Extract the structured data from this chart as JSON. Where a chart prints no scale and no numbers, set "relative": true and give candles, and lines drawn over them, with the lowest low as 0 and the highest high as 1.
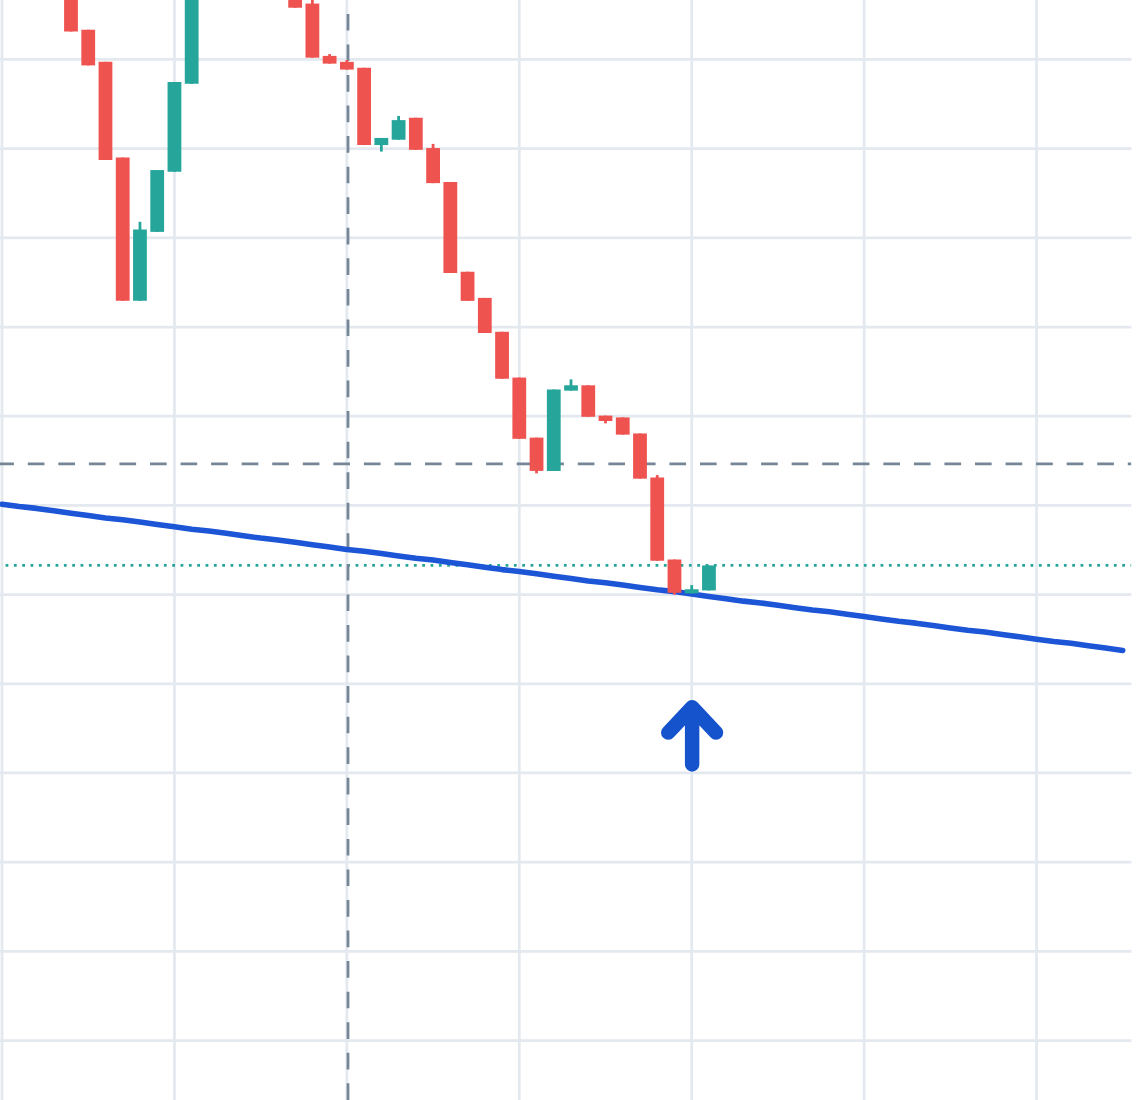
{
  "chart_data": {
    "type": "candlestick",
    "relative": true,
    "categories": [
      null,
      null,
      null,
      null,
      null,
      null,
      null,
      null,
      null,
      null,
      null,
      null,
      null,
      null,
      null,
      null,
      null,
      null,
      null,
      null,
      null,
      null,
      null,
      null,
      null,
      null,
      null,
      null,
      null,
      null,
      null,
      null,
      null,
      null,
      null,
      null,
      null,
      null,
      null,
      null,
      null,
      null,
      null,
      null,
      null,
      null,
      null,
      null,
      null,
      null,
      null,
      null,
      null,
      null,
      null,
      null,
      null,
      null,
      null,
      null,
      null,
      null,
      null,
      null,
      null,
      null
    ],
    "ohlc": [
      null,
      null,
      null,
      null,
      [
        1,
        1,
        0.947,
        0.947
      ],
      [
        0.95,
        0.95,
        0.89,
        0.89
      ],
      [
        0.896,
        0.896,
        0.731,
        0.731
      ],
      [
        0.735,
        0.735,
        0.494,
        0.494
      ],
      [
        0.494,
        0.627,
        0.494,
        0.614
      ],
      [
        0.61,
        0.714,
        0.61,
        0.714
      ],
      [
        0.711,
        0.862,
        0.711,
        0.862
      ],
      [
        0.859,
        1,
        0.859,
        1
      ],
      null,
      null,
      null,
      null,
      null,
      [
        1,
        1,
        0.987,
        0.987
      ],
      [
        0.994,
        1,
        0.903,
        0.903
      ],
      [
        0.906,
        0.909,
        0.893,
        0.893
      ],
      [
        0.896,
        0.899,
        0.883,
        0.883
      ],
      [
        0.886,
        0.886,
        0.756,
        0.756
      ],
      [
        0.756,
        0.768,
        0.745,
        0.768
      ],
      [
        0.765,
        0.805,
        0.765,
        0.798
      ],
      [
        0.802,
        0.802,
        0.748,
        0.748
      ],
      [
        0.751,
        0.758,
        0.692,
        0.692
      ],
      [
        0.694,
        0.694,
        0.541,
        0.541
      ],
      [
        0.543,
        0.543,
        0.494,
        0.494
      ],
      [
        0.499,
        0.499,
        0.44,
        0.44
      ],
      [
        0.442,
        0.442,
        0.363,
        0.363
      ],
      [
        0.365,
        0.365,
        0.262,
        0.262
      ],
      [
        0.264,
        0.264,
        0.204,
        0.208
      ],
      [
        0.208,
        0.345,
        0.208,
        0.345
      ],
      [
        0.343,
        0.362,
        0.343,
        0.352
      ],
      [
        0.352,
        0.352,
        0.299,
        0.299
      ],
      [
        0.301,
        0.301,
        0.288,
        0.292
      ],
      [
        0.298,
        0.298,
        0.269,
        0.269
      ],
      [
        0.271,
        0.271,
        0.195,
        0.195
      ],
      [
        0.197,
        0.201,
        0.057,
        0.057
      ],
      [
        0.059,
        0.059,
        0,
        0.003
      ],
      [
        0.002,
        0.016,
        0.002,
        0.009
      ],
      [
        0.007,
        0.049,
        0.007,
        0.049
      ],
      null,
      null,
      null,
      null,
      null,
      null,
      null,
      null,
      null,
      null,
      null,
      null,
      null,
      null,
      null,
      null,
      null,
      null,
      null,
      null,
      null,
      null,
      null,
      null
    ],
    "colors": [
      null,
      null,
      null,
      null,
      "#ef5350",
      "#ef5350",
      "#ef5350",
      "#ef5350",
      "#26a69a",
      "#26a69a",
      "#26a69a",
      "#26a69a",
      null,
      null,
      null,
      null,
      null,
      "#ef5350",
      "#ef5350",
      "#ef5350",
      "#ef5350",
      "#ef5350",
      "#26a69a",
      "#26a69a",
      "#ef5350",
      "#ef5350",
      "#ef5350",
      "#ef5350",
      "#ef5350",
      "#ef5350",
      "#ef5350",
      "#ef5350",
      "#26a69a",
      "#26a69a",
      "#ef5350",
      "#ef5350",
      "#ef5350",
      "#ef5350",
      "#ef5350",
      "#ef5350",
      "#26a69a",
      "#26a69a",
      null,
      null,
      null,
      null,
      null,
      null,
      null,
      null,
      null,
      null,
      null,
      null,
      null,
      null,
      null,
      null,
      null,
      null,
      null,
      null,
      null,
      null,
      null,
      null
    ],
    "series": [
      {
        "type": "line",
        "color": "#1c55d6",
        "values": [
          0.152,
          0.148,
          0.145,
          0.141,
          0.137,
          0.133,
          0.129,
          0.126,
          0.122,
          0.118,
          0.114,
          0.11,
          0.107,
          0.103,
          0.099,
          0.095,
          0.092,
          0.088,
          0.084,
          0.08,
          0.076,
          0.073,
          0.069,
          0.065,
          0.061,
          0.058,
          0.054,
          0.05,
          0.046,
          0.042,
          0.039,
          0.035,
          0.031,
          0.027,
          0.023,
          0.02,
          0.016,
          0.012,
          0.008,
          0.005,
          0.001,
          -0.003,
          -0.007,
          -0.011,
          -0.014,
          -0.018,
          -0.022,
          -0.026,
          -0.029,
          -0.033,
          -0.037,
          -0.041,
          -0.045,
          -0.048,
          -0.052,
          -0.056,
          -0.06,
          -0.063,
          -0.067,
          -0.071,
          -0.075,
          -0.079,
          -0.082,
          -0.086,
          -0.09,
          -0.094
        ]
      }
    ],
    "ref_lines": [
      {
        "axis": "y",
        "value": 0.22,
        "color": "#758696",
        "line_style": "dashed"
      },
      {
        "axis": "y",
        "value": 0.049,
        "color": "#26a69a",
        "line_style": "dotted"
      }
    ],
    "grid": true
  }
}
